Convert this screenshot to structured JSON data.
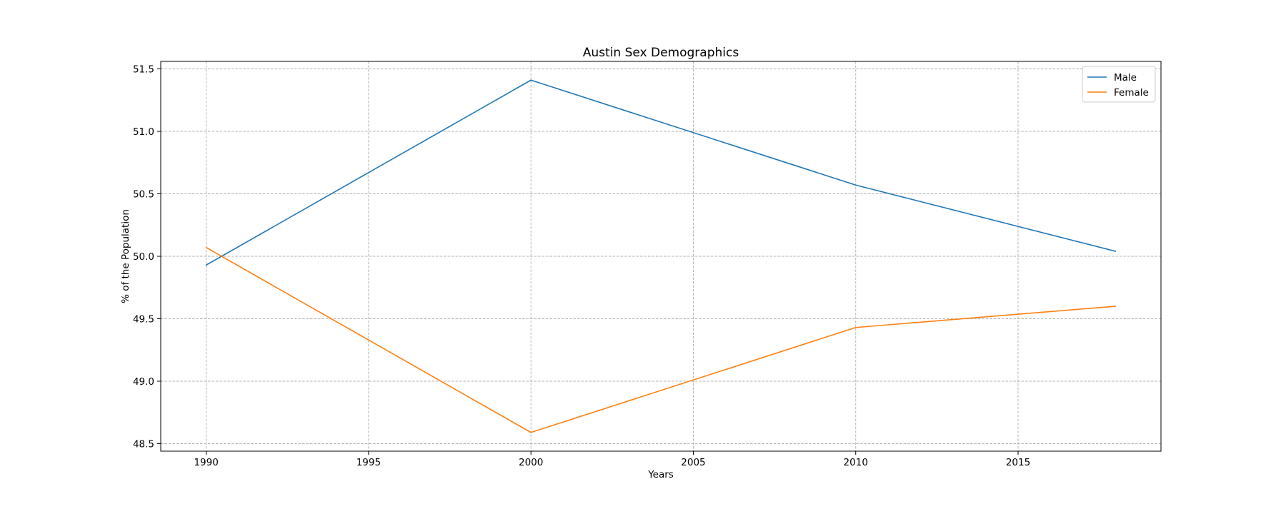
{
  "chart_data": {
    "type": "line",
    "title": "Austin Sex Demographics",
    "xlabel": "Years",
    "ylabel": "% of the Population",
    "x": [
      1990,
      2000,
      2010,
      2018
    ],
    "series": [
      {
        "name": "Male",
        "color": "#1f77b4",
        "values": [
          49.93,
          51.41,
          50.57,
          50.04
        ]
      },
      {
        "name": "Female",
        "color": "#ff7f0e",
        "values": [
          50.07,
          48.59,
          49.43,
          49.6
        ]
      }
    ],
    "xlim": [
      1988.6,
      2019.4
    ],
    "ylim": [
      48.44,
      51.56
    ],
    "xticks": [
      1990,
      1995,
      2000,
      2005,
      2010,
      2015
    ],
    "xtick_labels": [
      "1990",
      "1995",
      "2000",
      "2005",
      "2010",
      "2015"
    ],
    "yticks": [
      48.5,
      49.0,
      49.5,
      50.0,
      50.5,
      51.0,
      51.5
    ],
    "ytick_labels": [
      "48.5",
      "49.0",
      "49.5",
      "50.0",
      "50.5",
      "51.0",
      "51.5"
    ],
    "grid": true,
    "legend_position": "top-right"
  }
}
